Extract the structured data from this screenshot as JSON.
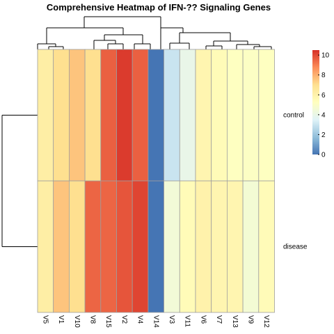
{
  "chart_data": {
    "type": "heatmap",
    "title": "Comprehensive Heatmap of IFN-?? Signaling Genes",
    "columns": [
      "V5",
      "V1",
      "V10",
      "V8",
      "V15",
      "V2",
      "V4",
      "V14",
      "V3",
      "V11",
      "V6",
      "V7",
      "V13",
      "V9",
      "V12"
    ],
    "rows": [
      "control",
      "disease"
    ],
    "values": [
      [
        6.2,
        7.0,
        7.6,
        7.0,
        9.6,
        10.3,
        9.6,
        0.0,
        3.0,
        4.0,
        5.8,
        5.5,
        5.2,
        5.1,
        5.2
      ],
      [
        6.2,
        7.6,
        7.0,
        9.5,
        9.5,
        9.8,
        10.1,
        0.0,
        4.5,
        5.5,
        6.0,
        5.8,
        5.8,
        4.6,
        5.5
      ]
    ],
    "legend": {
      "ticks": [
        0,
        2,
        4,
        6,
        8,
        10
      ],
      "range": [
        0,
        10.5
      ],
      "placement": "right"
    },
    "colors": [
      "#4575b4",
      "#91bfdb",
      "#e0f3f8",
      "#ffffbf",
      "#fee090",
      "#fc8d59",
      "#d73027"
    ],
    "grid": true
  }
}
